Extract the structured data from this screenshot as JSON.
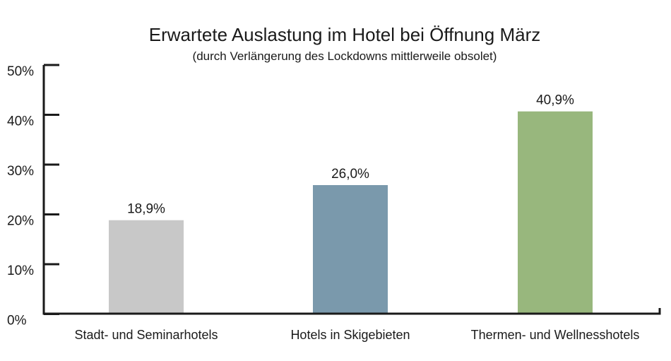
{
  "chart_data": {
    "type": "bar",
    "title": "Erwartete Auslastung im Hotel bei Öffnung März",
    "subtitle": "(durch Verlängerung des Lockdowns mittlerweile obsolet)",
    "categories": [
      "Stadt- und Seminarhotels",
      "Hotels in Skigebieten",
      "Thermen- und Wellnesshotels"
    ],
    "values": [
      18.9,
      26.0,
      40.9
    ],
    "value_labels": [
      "18,9%",
      "26,0%",
      "40,9%"
    ],
    "bar_colors": [
      "#c8c8c8",
      "#7a99ac",
      "#98b77d"
    ],
    "y_tick_labels": [
      "50%",
      "40%",
      "30%",
      "20%",
      "10%",
      "0%"
    ],
    "xlabel": "",
    "ylabel": "",
    "ylim": [
      0,
      50
    ],
    "grid": false,
    "legend": "none"
  }
}
